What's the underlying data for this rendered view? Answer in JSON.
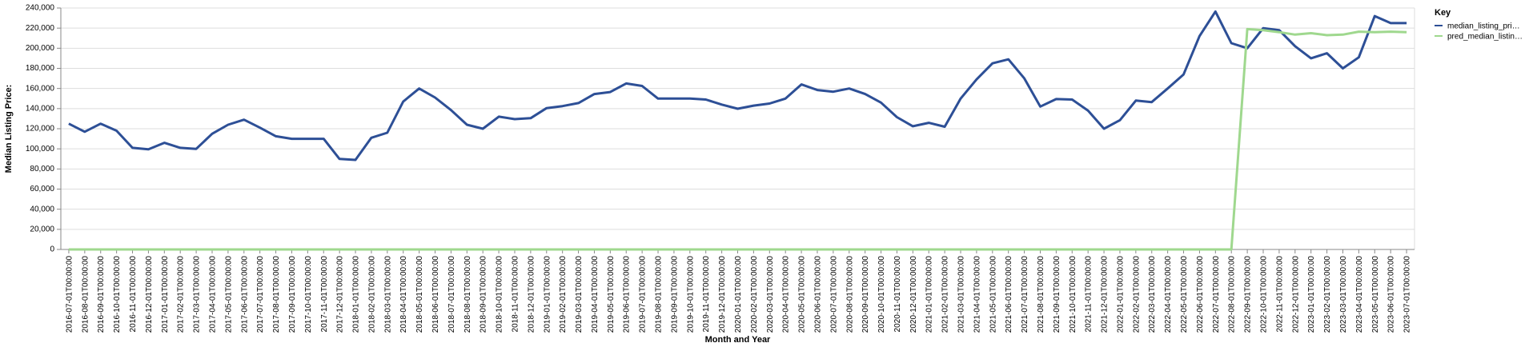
{
  "chart_data": {
    "type": "line",
    "xlabel": "Month and Year",
    "ylabel": "Median Listing Price:",
    "ylim": [
      0,
      240000
    ],
    "y_ticks": [
      "0",
      "20,000",
      "40,000",
      "60,000",
      "80,000",
      "100,000",
      "120,000",
      "140,000",
      "160,000",
      "180,000",
      "200,000",
      "220,000",
      "240,000"
    ],
    "y_tick_values": [
      0,
      20000,
      40000,
      60000,
      80000,
      100000,
      120000,
      140000,
      160000,
      180000,
      200000,
      220000,
      240000
    ],
    "grid": true,
    "legend": {
      "title": "Key",
      "placement": "right",
      "entries": [
        "median_listing_pri…",
        "pred_median_listin…"
      ]
    },
    "x": [
      "2016-07-01T00:00:00",
      "2016-08-01T00:00:00",
      "2016-09-01T00:00:00",
      "2016-10-01T00:00:00",
      "2016-11-01T00:00:00",
      "2016-12-01T00:00:00",
      "2017-01-01T00:00:00",
      "2017-02-01T00:00:00",
      "2017-03-01T00:00:00",
      "2017-04-01T00:00:00",
      "2017-05-01T00:00:00",
      "2017-06-01T00:00:00",
      "2017-07-01T00:00:00",
      "2017-08-01T00:00:00",
      "2017-09-01T00:00:00",
      "2017-10-01T00:00:00",
      "2017-11-01T00:00:00",
      "2017-12-01T00:00:00",
      "2018-01-01T00:00:00",
      "2018-02-01T00:00:00",
      "2018-03-01T00:00:00",
      "2018-04-01T00:00:00",
      "2018-05-01T00:00:00",
      "2018-06-01T00:00:00",
      "2018-07-01T00:00:00",
      "2018-08-01T00:00:00",
      "2018-09-01T00:00:00",
      "2018-10-01T00:00:00",
      "2018-11-01T00:00:00",
      "2018-12-01T00:00:00",
      "2019-01-01T00:00:00",
      "2019-02-01T00:00:00",
      "2019-03-01T00:00:00",
      "2019-04-01T00:00:00",
      "2019-05-01T00:00:00",
      "2019-06-01T00:00:00",
      "2019-07-01T00:00:00",
      "2019-08-01T00:00:00",
      "2019-09-01T00:00:00",
      "2019-10-01T00:00:00",
      "2019-11-01T00:00:00",
      "2019-12-01T00:00:00",
      "2020-01-01T00:00:00",
      "2020-02-01T00:00:00",
      "2020-03-01T00:00:00",
      "2020-04-01T00:00:00",
      "2020-05-01T00:00:00",
      "2020-06-01T00:00:00",
      "2020-07-01T00:00:00",
      "2020-08-01T00:00:00",
      "2020-09-01T00:00:00",
      "2020-10-01T00:00:00",
      "2020-11-01T00:00:00",
      "2020-12-01T00:00:00",
      "2021-01-01T00:00:00",
      "2021-02-01T00:00:00",
      "2021-03-01T00:00:00",
      "2021-04-01T00:00:00",
      "2021-05-01T00:00:00",
      "2021-06-01T00:00:00",
      "2021-07-01T00:00:00",
      "2021-08-01T00:00:00",
      "2021-09-01T00:00:00",
      "2021-10-01T00:00:00",
      "2021-11-01T00:00:00",
      "2021-12-01T00:00:00",
      "2022-01-01T00:00:00",
      "2022-02-01T00:00:00",
      "2022-03-01T00:00:00",
      "2022-04-01T00:00:00",
      "2022-05-01T00:00:00",
      "2022-06-01T00:00:00",
      "2022-07-01T00:00:00",
      "2022-08-01T00:00:00",
      "2022-09-01T00:00:00",
      "2022-10-01T00:00:00",
      "2022-11-01T00:00:00",
      "2022-12-01T00:00:00",
      "2023-01-01T00:00:00",
      "2023-02-01T00:00:00",
      "2023-03-01T00:00:00",
      "2023-04-01T00:00:00",
      "2023-05-01T00:00:00",
      "2023-06-01T00:00:00",
      "2023-07-01T00:00:00"
    ],
    "series": [
      {
        "name": "median_listing_pri…",
        "color": "#2d4f96",
        "values": [
          125000,
          117000,
          125000,
          118000,
          101000,
          99500,
          106000,
          101000,
          100000,
          115000,
          124000,
          129000,
          121000,
          112500,
          110000,
          110000,
          110000,
          90000,
          89000,
          111000,
          116000,
          147000,
          160000,
          151000,
          138500,
          124000,
          120000,
          132000,
          129500,
          130500,
          140500,
          142500,
          145500,
          154500,
          156500,
          165000,
          162500,
          150000,
          150000,
          150000,
          149000,
          144000,
          139900,
          143000,
          145000,
          150000,
          164000,
          158500,
          156800,
          160000,
          154500,
          146000,
          131500,
          122500,
          125900,
          122000,
          150000,
          169000,
          185000,
          189000,
          170000,
          142000,
          149500,
          149000,
          138000,
          120000,
          128500,
          148000,
          146500,
          160000,
          174000,
          212000,
          236500,
          205000,
          200000,
          220000,
          218000,
          202000,
          190000,
          195000,
          180000,
          191000,
          232000,
          225000,
          225000
        ]
      },
      {
        "name": "pred_median_listin…",
        "color": "#9fd88e",
        "values": [
          0,
          0,
          0,
          0,
          0,
          0,
          0,
          0,
          0,
          0,
          0,
          0,
          0,
          0,
          0,
          0,
          0,
          0,
          0,
          0,
          0,
          0,
          0,
          0,
          0,
          0,
          0,
          0,
          0,
          0,
          0,
          0,
          0,
          0,
          0,
          0,
          0,
          0,
          0,
          0,
          0,
          0,
          0,
          0,
          0,
          0,
          0,
          0,
          0,
          0,
          0,
          0,
          0,
          0,
          0,
          0,
          0,
          0,
          0,
          0,
          0,
          0,
          0,
          0,
          0,
          0,
          0,
          0,
          0,
          0,
          0,
          0,
          0,
          0,
          219000,
          218000,
          216000,
          213500,
          215000,
          213000,
          213500,
          216500,
          216000,
          216500,
          216000
        ]
      }
    ]
  }
}
